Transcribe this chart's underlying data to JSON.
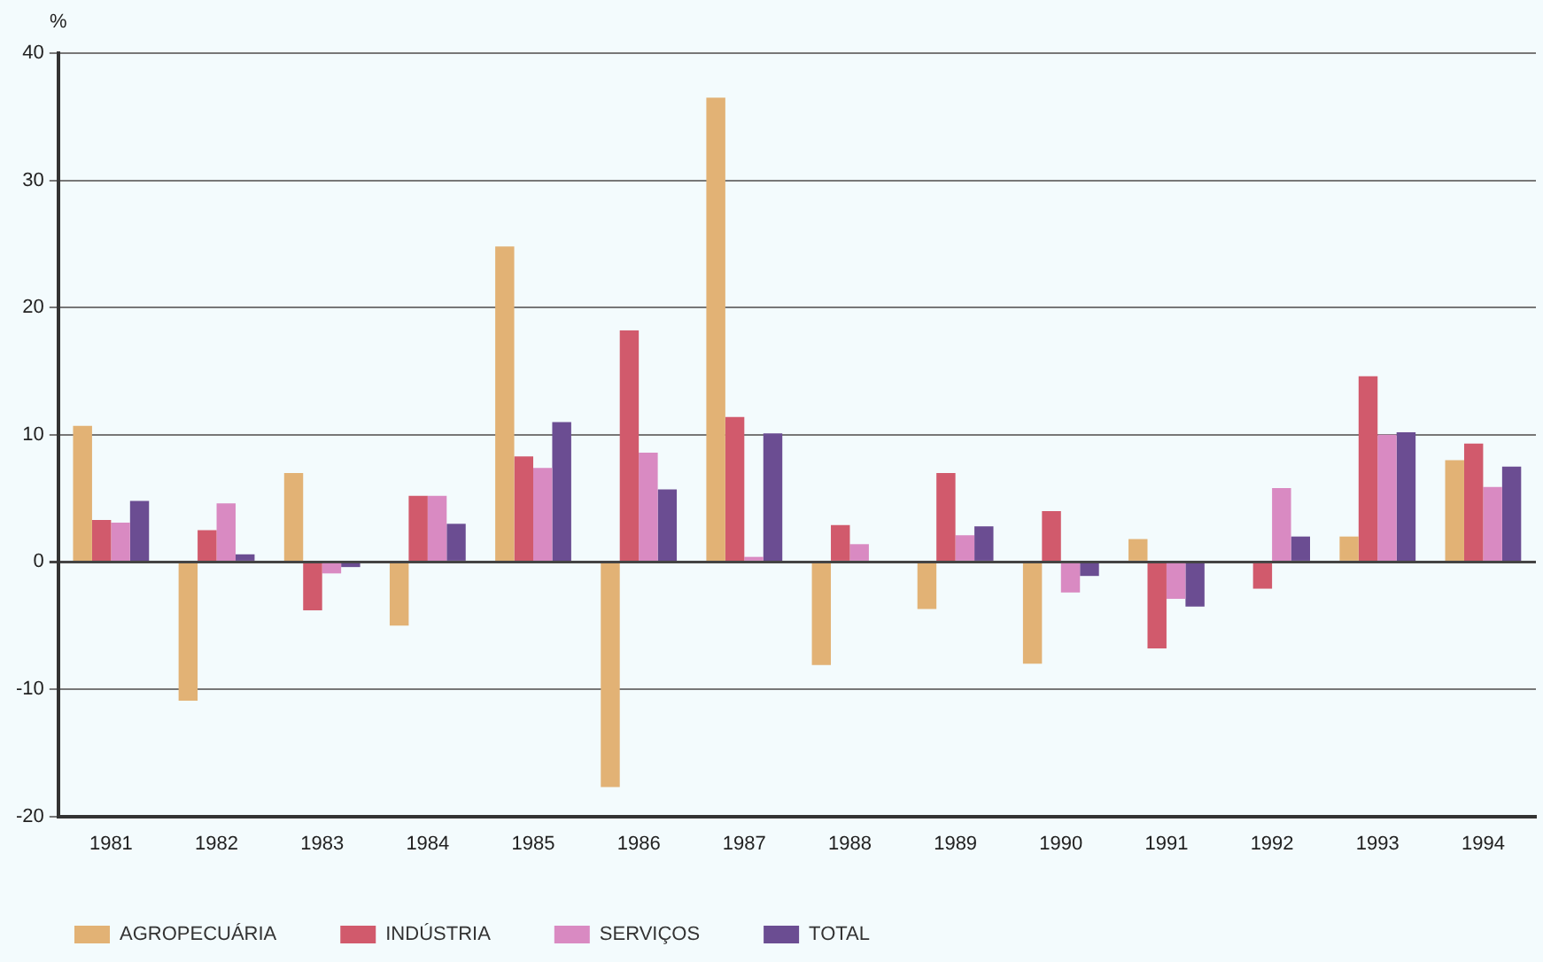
{
  "chart_data": {
    "type": "bar",
    "ylabel": "%",
    "categories": [
      "1981",
      "1982",
      "1983",
      "1984",
      "1985",
      "1986",
      "1987",
      "1988",
      "1989",
      "1990",
      "1991",
      "1992",
      "1993",
      "1994"
    ],
    "series": [
      {
        "name": "AGROPECUÁRIA",
        "color": "#e2b275",
        "values": [
          10.7,
          -10.9,
          7.0,
          -5.0,
          24.8,
          -17.7,
          36.5,
          -8.1,
          -3.7,
          -8.0,
          1.8,
          0,
          2.0,
          8.0
        ]
      },
      {
        "name": "INDÚSTRIA",
        "color": "#d15a6c",
        "values": [
          3.3,
          2.5,
          -3.8,
          5.2,
          8.3,
          18.2,
          11.4,
          2.9,
          7.0,
          4.0,
          -6.8,
          -2.1,
          14.6,
          9.3
        ]
      },
      {
        "name": "SERVIÇOS",
        "color": "#d98ac2",
        "values": [
          3.1,
          4.6,
          -0.9,
          5.2,
          7.4,
          8.6,
          0.4,
          1.4,
          2.1,
          -2.4,
          -2.9,
          5.8,
          10.0,
          5.9
        ]
      },
      {
        "name": "TOTAL",
        "color": "#6b4d92",
        "values": [
          4.8,
          0.6,
          -0.4,
          3.0,
          11.0,
          5.7,
          10.1,
          0,
          2.8,
          -1.1,
          -3.5,
          2.0,
          10.2,
          7.5
        ]
      }
    ],
    "ylim": [
      -20,
      40
    ],
    "yticks": [
      -20,
      -10,
      0,
      10,
      20,
      30,
      40
    ],
    "grid": "y",
    "legend": "bottom left"
  }
}
